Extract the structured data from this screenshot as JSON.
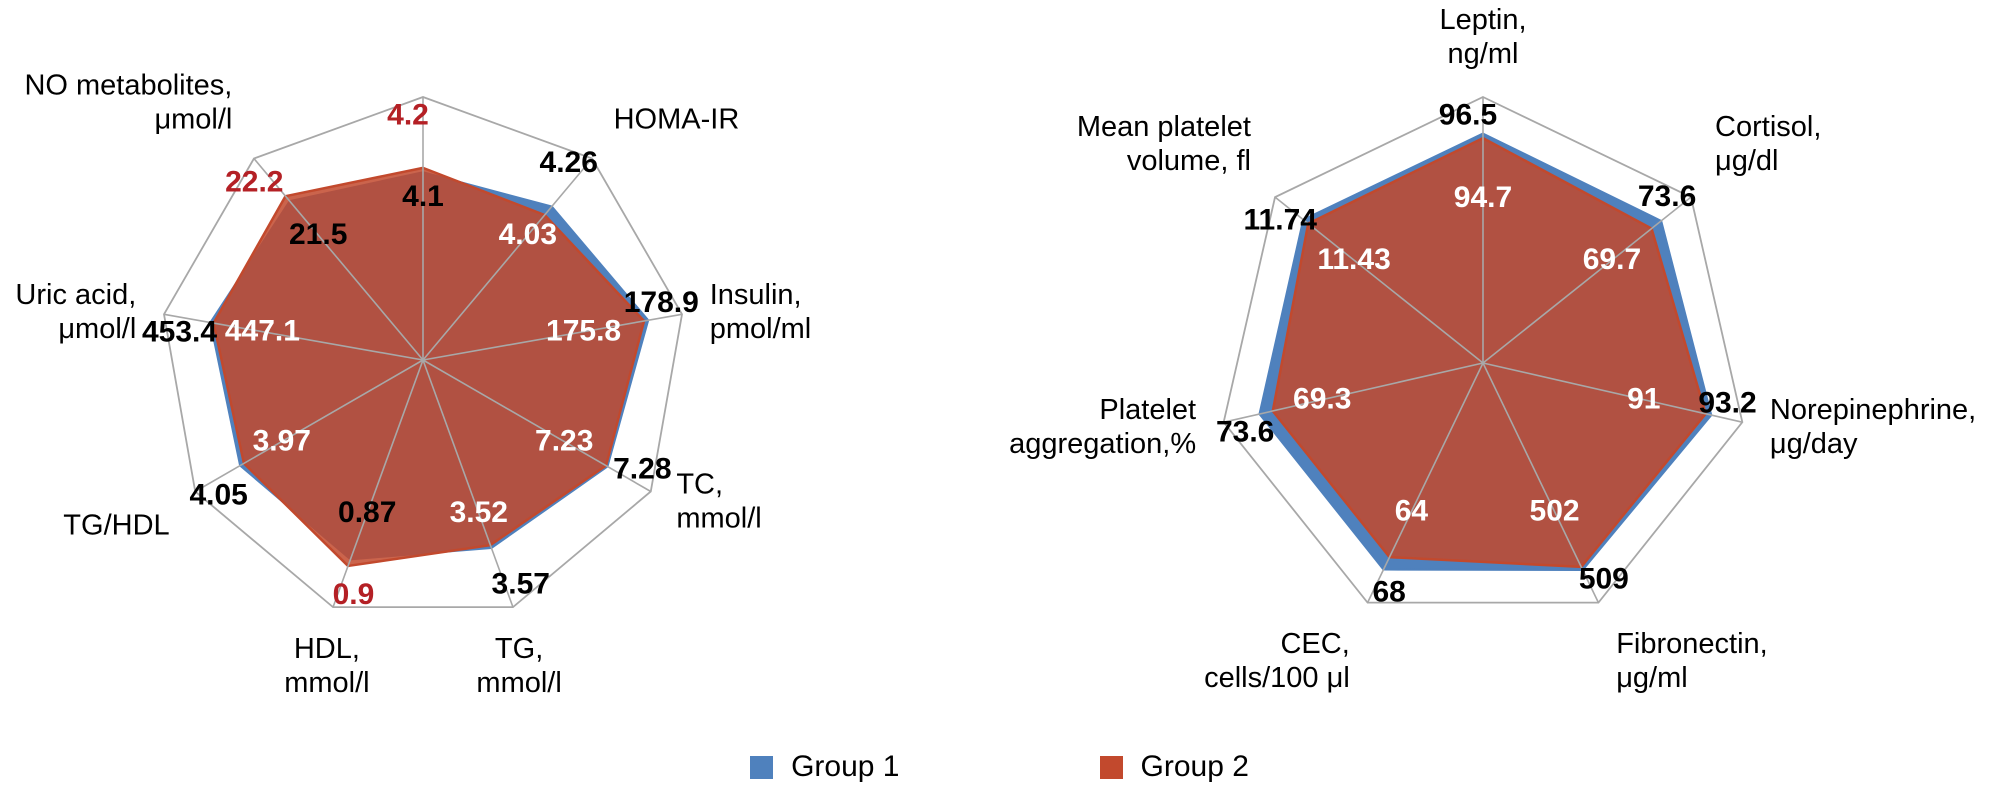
{
  "figure": {
    "description": "Two radar charts comparing two patient groups across biochemical and hematological parameters"
  },
  "colors": {
    "group1": "#4F81BD",
    "group2": "#C2492D",
    "group2_fill_opacity": 0.85,
    "group2_value_text": "#B42025",
    "group1_outer_value_text": "#000000",
    "inner_value_text": "#FFFFFF",
    "grid": "#A8A8A8",
    "label_text": "#000000"
  },
  "legend": {
    "items": [
      {
        "label": "Group 1",
        "color": "#4F81BD"
      },
      {
        "label": "Group 2",
        "color": "#C2492D"
      }
    ]
  },
  "chart_data": [
    {
      "type": "radar",
      "title": "",
      "legend_position": "bottom",
      "grid": "outer-ring-and-spokes-only",
      "series_names": [
        "Group 1",
        "Group 2"
      ],
      "axes": [
        {
          "label": "",
          "max": 5.75,
          "group1": 4.1,
          "group2": 4.2
        },
        {
          "label": "HOMA-IR",
          "max": 5.6,
          "group1": 4.26,
          "group2": 4.03
        },
        {
          "label": "Insulin,\npmol/ml",
          "max": 206,
          "group1": 178.9,
          "group2": 175.8
        },
        {
          "label": "TC,\nmmol/l",
          "max": 9.0,
          "group1": 7.28,
          "group2": 7.23
        },
        {
          "label": "TG,\nmmol/l",
          "max": 4.7,
          "group1": 3.57,
          "group2": 3.52
        },
        {
          "label": "HDL,\nmmol/l",
          "max": 1.08,
          "group1": 0.87,
          "group2": 0.9
        },
        {
          "label": "TG/HDL",
          "max": 5.05,
          "group1": 4.05,
          "group2": 3.97
        },
        {
          "label": "Uric acid,\nμmol/l",
          "max": 553,
          "group1": 453.4,
          "group2": 447.1
        },
        {
          "label": "NO metabolites,\nμmol/l",
          "max": 27.3,
          "group1": 21.5,
          "group2": 22.2
        }
      ]
    },
    {
      "type": "radar",
      "title": "",
      "legend_position": "bottom",
      "grid": "outer-ring-and-spokes-only",
      "series_names": [
        "Group 1",
        "Group 2"
      ],
      "axes": [
        {
          "label": "Leptin,\nng/ml",
          "max": 112,
          "group1": 96.5,
          "group2": 94.7
        },
        {
          "label": "Cortisol,\nμg/dl",
          "max": 86,
          "group1": 73.6,
          "group2": 69.7
        },
        {
          "label": "Norepinephrine,\nμg/day",
          "max": 106,
          "group1": 93.2,
          "group2": 91
        },
        {
          "label": "Fibronectin,\nμg/ml",
          "max": 590,
          "group1": 509,
          "group2": 502
        },
        {
          "label": "CEC,\ncells/100 μl",
          "max": 79,
          "group1": 68,
          "group2": 64
        },
        {
          "label": "Platelet\naggregation,%",
          "max": 85.5,
          "group1": 73.6,
          "group2": 69.3
        },
        {
          "label": "Mean platelet\nvolume, fl",
          "max": 13.6,
          "group1": 11.74,
          "group2": 11.43
        }
      ]
    }
  ]
}
